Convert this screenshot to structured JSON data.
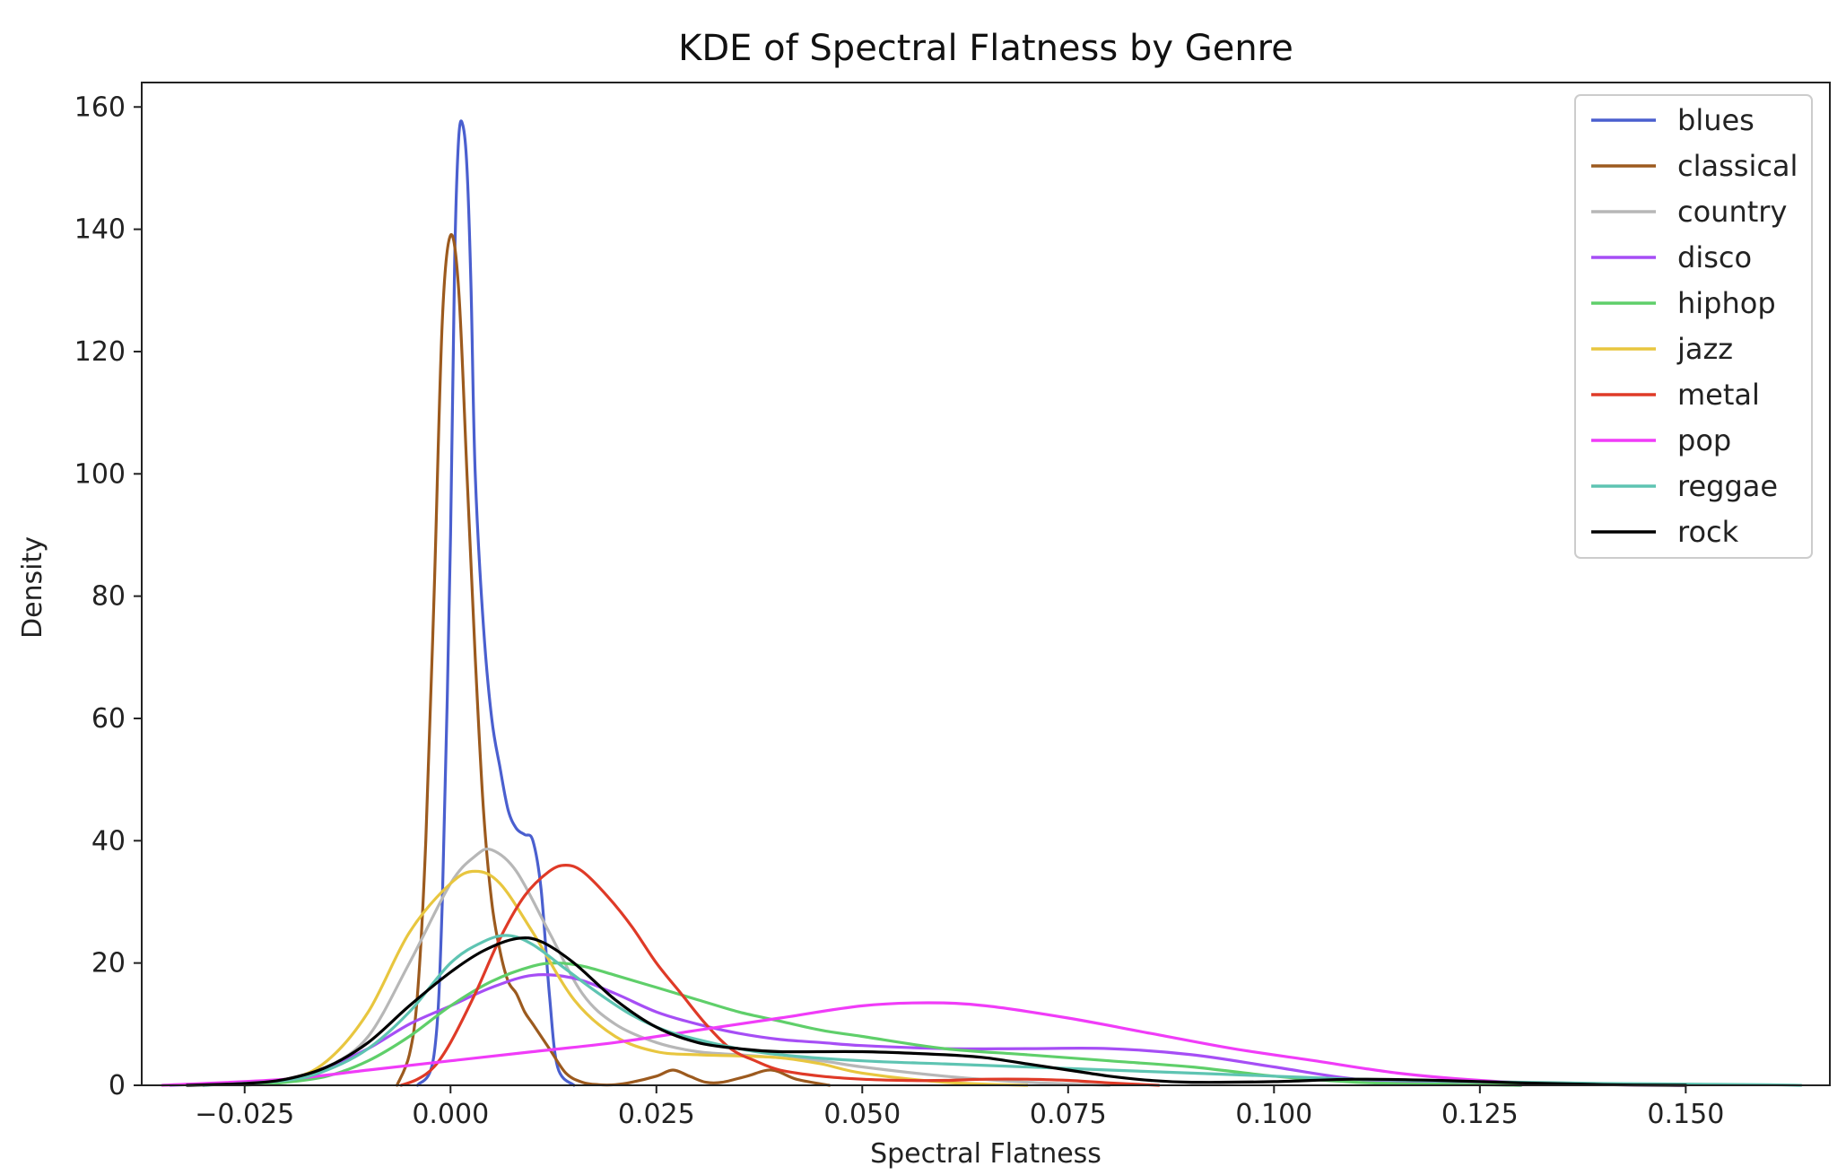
{
  "chart_data": {
    "type": "line",
    "title": "KDE of Spectral Flatness by Genre",
    "xlabel": "Spectral Flatness",
    "ylabel": "Density",
    "xlim": [
      -0.0375,
      0.1675
    ],
    "ylim": [
      0,
      164
    ],
    "xticks": [
      -0.025,
      0.0,
      0.025,
      0.05,
      0.075,
      0.1,
      0.125,
      0.15
    ],
    "xtick_labels": [
      "−0.025",
      "0.000",
      "0.025",
      "0.050",
      "0.075",
      "0.100",
      "0.125",
      "0.150"
    ],
    "yticks": [
      0,
      20,
      40,
      60,
      80,
      100,
      120,
      140,
      160
    ],
    "ytick_labels": [
      "0",
      "20",
      "40",
      "60",
      "80",
      "100",
      "120",
      "140",
      "160"
    ],
    "grid": false,
    "legend_position": "top-right",
    "series": [
      {
        "name": "blues",
        "color": "#4a5fcf",
        "x": [
          -0.004,
          -0.002,
          -0.001,
          0.0,
          0.0005,
          0.001,
          0.0015,
          0.002,
          0.0025,
          0.003,
          0.004,
          0.005,
          0.006,
          0.007,
          0.008,
          0.009,
          0.01,
          0.011,
          0.012,
          0.013,
          0.015
        ],
        "y": [
          0,
          5,
          30,
          90,
          135,
          155,
          157,
          150,
          130,
          100,
          75,
          60,
          52,
          45,
          42,
          41,
          40,
          32,
          15,
          3,
          0
        ]
      },
      {
        "name": "classical",
        "color": "#9c5a1e",
        "x": [
          -0.0065,
          -0.005,
          -0.004,
          -0.003,
          -0.002,
          -0.001,
          0.0,
          0.001,
          0.002,
          0.003,
          0.004,
          0.005,
          0.006,
          0.007,
          0.008,
          0.009,
          0.01,
          0.012,
          0.014,
          0.016,
          0.018,
          0.02,
          0.022,
          0.025,
          0.027,
          0.029,
          0.031,
          0.033,
          0.036,
          0.039,
          0.042,
          0.046
        ],
        "y": [
          0,
          5,
          15,
          40,
          80,
          125,
          139,
          130,
          100,
          70,
          45,
          30,
          22,
          17,
          15,
          12,
          10,
          6,
          2,
          0.5,
          0.1,
          0.1,
          0.5,
          1.5,
          2.5,
          1.5,
          0.5,
          0.5,
          1.5,
          2.5,
          1,
          0
        ]
      },
      {
        "name": "country",
        "color": "#b7b7b7",
        "x": [
          -0.03,
          -0.02,
          -0.015,
          -0.01,
          -0.005,
          0.0,
          0.003,
          0.005,
          0.008,
          0.012,
          0.016,
          0.02,
          0.025,
          0.03,
          0.035,
          0.04,
          0.045,
          0.05,
          0.06,
          0.07,
          0.08
        ],
        "y": [
          0,
          1,
          3,
          8,
          20,
          33,
          37.5,
          38.5,
          35,
          25,
          15,
          10,
          7,
          5.5,
          5,
          4.5,
          4,
          3,
          1.5,
          0.5,
          0
        ]
      },
      {
        "name": "disco",
        "color": "#a64ef5",
        "x": [
          -0.034,
          -0.025,
          -0.02,
          -0.015,
          -0.01,
          -0.005,
          0.0,
          0.005,
          0.01,
          0.015,
          0.02,
          0.025,
          0.03,
          0.035,
          0.04,
          0.045,
          0.05,
          0.06,
          0.07,
          0.08,
          0.09,
          0.1,
          0.11,
          0.12,
          0.13
        ],
        "y": [
          0,
          0.5,
          1,
          3,
          6,
          10,
          13,
          16,
          18,
          17.5,
          15,
          12,
          10,
          8.5,
          7.5,
          7,
          6.5,
          6,
          6,
          6,
          5,
          3,
          1,
          0.3,
          0
        ]
      },
      {
        "name": "hiphop",
        "color": "#5fcf6a",
        "x": [
          -0.025,
          -0.02,
          -0.015,
          -0.01,
          -0.005,
          0.0,
          0.005,
          0.01,
          0.013,
          0.016,
          0.02,
          0.025,
          0.03,
          0.035,
          0.04,
          0.045,
          0.05,
          0.06,
          0.07,
          0.08,
          0.09,
          0.1,
          0.11,
          0.12,
          0.13
        ],
        "y": [
          0,
          0.5,
          1.5,
          4,
          8,
          13,
          17,
          19.5,
          20,
          19.5,
          18,
          16,
          14,
          12,
          10.5,
          9,
          8,
          6,
          5,
          4,
          3,
          1.5,
          0.5,
          0.2,
          0
        ]
      },
      {
        "name": "jazz",
        "color": "#e8c63f",
        "x": [
          -0.03,
          -0.02,
          -0.015,
          -0.01,
          -0.005,
          0.0,
          0.003,
          0.006,
          0.01,
          0.015,
          0.02,
          0.025,
          0.03,
          0.035,
          0.04,
          0.045,
          0.05,
          0.06,
          0.07
        ],
        "y": [
          0,
          1,
          4,
          12,
          25,
          33,
          35,
          33,
          25,
          14,
          8,
          5.5,
          5,
          4.8,
          4.5,
          3.5,
          2,
          0.5,
          0
        ]
      },
      {
        "name": "metal",
        "color": "#df3a27",
        "x": [
          -0.006,
          -0.004,
          -0.002,
          0.0,
          0.003,
          0.006,
          0.009,
          0.012,
          0.014,
          0.016,
          0.019,
          0.022,
          0.025,
          0.028,
          0.031,
          0.034,
          0.037,
          0.04,
          0.045,
          0.05,
          0.055,
          0.06,
          0.065,
          0.07,
          0.075,
          0.08,
          0.086
        ],
        "y": [
          0,
          1,
          3,
          7,
          15,
          24,
          31,
          35,
          36,
          35,
          31,
          26,
          20,
          15,
          10,
          6,
          4,
          2.5,
          1.5,
          1,
          0.8,
          0.8,
          1,
          1,
          0.8,
          0.4,
          0
        ]
      },
      {
        "name": "pop",
        "color": "#f03cf8",
        "x": [
          -0.035,
          -0.02,
          -0.01,
          0.0,
          0.01,
          0.02,
          0.03,
          0.04,
          0.05,
          0.058,
          0.065,
          0.075,
          0.085,
          0.095,
          0.105,
          0.115,
          0.125,
          0.135,
          0.15
        ],
        "y": [
          0,
          1,
          2.5,
          4,
          5.5,
          7,
          9,
          11,
          13,
          13.5,
          13,
          11,
          8.5,
          6,
          4,
          2,
          0.8,
          0.2,
          0
        ]
      },
      {
        "name": "reggae",
        "color": "#5ec4b2",
        "x": [
          -0.03,
          -0.02,
          -0.015,
          -0.01,
          -0.005,
          0.0,
          0.004,
          0.007,
          0.01,
          0.014,
          0.018,
          0.022,
          0.026,
          0.03,
          0.035,
          0.04,
          0.05,
          0.06,
          0.07,
          0.08,
          0.09,
          0.1,
          0.11,
          0.12,
          0.13,
          0.14,
          0.15,
          0.16,
          0.164
        ],
        "y": [
          0,
          0.8,
          2.5,
          6,
          12,
          20,
          23.5,
          24.5,
          23,
          19,
          15,
          11.5,
          9,
          7.5,
          6,
          5,
          4,
          3.5,
          3,
          2.5,
          2,
          1.5,
          1,
          0.7,
          0.5,
          0.3,
          0.2,
          0.1,
          0
        ]
      },
      {
        "name": "rock",
        "color": "#000000",
        "x": [
          -0.032,
          -0.025,
          -0.02,
          -0.015,
          -0.01,
          -0.005,
          0.0,
          0.004,
          0.008,
          0.011,
          0.015,
          0.02,
          0.025,
          0.03,
          0.035,
          0.04,
          0.05,
          0.06,
          0.065,
          0.07,
          0.075,
          0.08,
          0.085,
          0.09,
          0.1,
          0.11,
          0.12,
          0.13,
          0.14,
          0.15
        ],
        "y": [
          0,
          0.3,
          1,
          3,
          7,
          13,
          18.5,
          22,
          24,
          23.5,
          20,
          14,
          9.5,
          7,
          6,
          5.5,
          5.5,
          5,
          4.5,
          3.5,
          2.5,
          1.5,
          0.8,
          0.5,
          0.6,
          1,
          0.8,
          0.4,
          0.1,
          0
        ]
      }
    ]
  }
}
